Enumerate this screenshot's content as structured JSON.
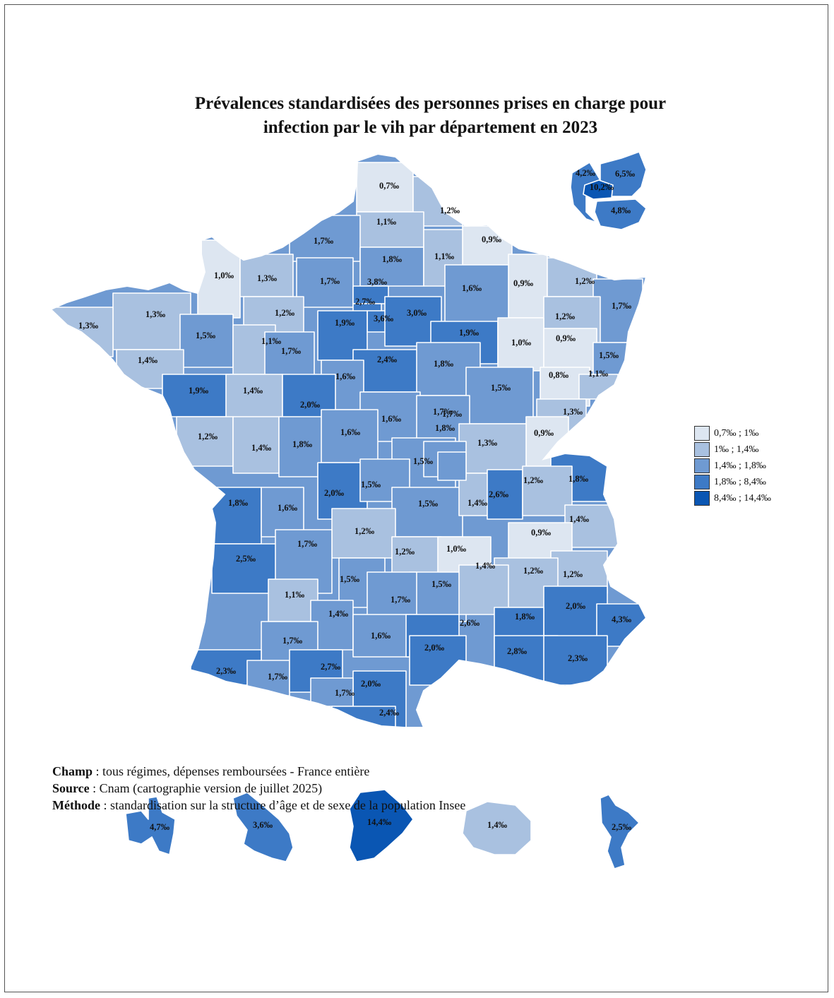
{
  "title": {
    "line1": "Prévalences standardisées des personnes prises en charge pour",
    "line2": "infection par le vih par département en 2023"
  },
  "legend": [
    {
      "label": "0,7‰ ; 1‰",
      "color": "#dde6f1"
    },
    {
      "label": "1‰ ; 1,4‰",
      "color": "#a9c1e0"
    },
    {
      "label": "1,4‰ ; 1,8‰",
      "color": "#6f9ad2"
    },
    {
      "label": "1,8‰ ; 8,4‰",
      "color": "#3d7ac6"
    },
    {
      "label": "8,4‰ ; 14,4‰",
      "color": "#0a56b3"
    }
  ],
  "departments": [
    {
      "value": "0,7‰",
      "class": 0
    },
    {
      "value": "1,2‰",
      "class": 1
    },
    {
      "value": "1,1‰",
      "class": 1
    },
    {
      "value": "1,7‰",
      "class": 2
    },
    {
      "value": "0,9‰",
      "class": 0
    },
    {
      "value": "1,8‰",
      "class": 2
    },
    {
      "value": "1,1‰",
      "class": 1
    },
    {
      "value": "1,0‰",
      "class": 0
    },
    {
      "value": "1,3‰",
      "class": 1
    },
    {
      "value": "1,7‰",
      "class": 2
    },
    {
      "value": "3,8‰",
      "class": 3
    },
    {
      "value": "0,9‰",
      "class": 0
    },
    {
      "value": "1,2‰",
      "class": 1
    },
    {
      "value": "1,6‰",
      "class": 2
    },
    {
      "value": "2,7‰",
      "class": 3
    },
    {
      "value": "1,3‰",
      "class": 1
    },
    {
      "value": "1,3‰",
      "class": 1
    },
    {
      "value": "1,2‰",
      "class": 1
    },
    {
      "value": "3,6‰",
      "class": 3
    },
    {
      "value": "3,0‰",
      "class": 3
    },
    {
      "value": "1,7‰",
      "class": 2
    },
    {
      "value": "1,2‰",
      "class": 1
    },
    {
      "value": "1,5‰",
      "class": 2
    },
    {
      "value": "1,9‰",
      "class": 3
    },
    {
      "value": "1,9‰",
      "class": 3
    },
    {
      "value": "1,1‰",
      "class": 1
    },
    {
      "value": "1,0‰",
      "class": 0
    },
    {
      "value": "0,9‰",
      "class": 0
    },
    {
      "value": "1,7‰",
      "class": 2
    },
    {
      "value": "1,4‰",
      "class": 1
    },
    {
      "value": "2,4‰",
      "class": 3
    },
    {
      "value": "1,8‰",
      "class": 2
    },
    {
      "value": "1,5‰",
      "class": 2
    },
    {
      "value": "1,6‰",
      "class": 2
    },
    {
      "value": "0,8‰",
      "class": 0
    },
    {
      "value": "1,1‰",
      "class": 1
    },
    {
      "value": "1,9‰",
      "class": 3
    },
    {
      "value": "1,4‰",
      "class": 1
    },
    {
      "value": "2,0‰",
      "class": 3
    },
    {
      "value": "1,5‰",
      "class": 2
    },
    {
      "value": "1,6‰",
      "class": 2
    },
    {
      "value": "1,7‰",
      "class": 2
    },
    {
      "value": "1,3‰",
      "class": 1
    },
    {
      "value": "1,2‰",
      "class": 1
    },
    {
      "value": "1,4‰",
      "class": 1
    },
    {
      "value": "1,8‰",
      "class": 2
    },
    {
      "value": "1,6‰",
      "class": 2
    },
    {
      "value": "0,9‰",
      "class": 0
    },
    {
      "value": "1,3‰",
      "class": 1
    },
    {
      "value": "1,5‰",
      "class": 2
    },
    {
      "value": "1,8‰",
      "class": 3
    },
    {
      "value": "2,0‰",
      "class": 3
    },
    {
      "value": "1,5‰",
      "class": 2
    },
    {
      "value": "1,5‰",
      "class": 2
    },
    {
      "value": "1,4‰",
      "class": 1
    },
    {
      "value": "2,6‰",
      "class": 3
    },
    {
      "value": "1,2‰",
      "class": 1
    },
    {
      "value": "1,8‰",
      "class": 3
    },
    {
      "value": "1,6‰",
      "class": 2
    },
    {
      "value": "1,2‰",
      "class": 1
    },
    {
      "value": "1,4‰",
      "class": 1
    },
    {
      "value": "2,5‰",
      "class": 3
    },
    {
      "value": "1,7‰",
      "class": 2
    },
    {
      "value": "1,2‰",
      "class": 1
    },
    {
      "value": "1,0‰",
      "class": 0
    },
    {
      "value": "0,9‰",
      "class": 0
    },
    {
      "value": "1,2‰",
      "class": 1
    },
    {
      "value": "1,4‰",
      "class": 1
    },
    {
      "value": "1,5‰",
      "class": 2
    },
    {
      "value": "1,5‰",
      "class": 2
    },
    {
      "value": "1,1‰",
      "class": 1
    },
    {
      "value": "1,7‰",
      "class": 2
    },
    {
      "value": "1,2‰",
      "class": 1
    },
    {
      "value": "2,0‰",
      "class": 3
    },
    {
      "value": "1,4‰",
      "class": 2
    },
    {
      "value": "1,6‰",
      "class": 2
    },
    {
      "value": "2,0‰",
      "class": 3
    },
    {
      "value": "1,8‰",
      "class": 3
    },
    {
      "value": "4,3‰",
      "class": 3
    },
    {
      "value": "1,7‰",
      "class": 2
    },
    {
      "value": "2,6‰",
      "class": 3
    },
    {
      "value": "2,8‰",
      "class": 3
    },
    {
      "value": "2,3‰",
      "class": 3
    },
    {
      "value": "2,3‰",
      "class": 3
    },
    {
      "value": "1,7‰",
      "class": 2
    },
    {
      "value": "2,7‰",
      "class": 3
    },
    {
      "value": "2,0‰",
      "class": 3
    },
    {
      "value": "1,7‰",
      "class": 2
    },
    {
      "value": "2,4‰",
      "class": 3
    },
    {
      "value": "1,8‰",
      "class": 2
    },
    {
      "value": "1,7‰",
      "class": 2
    }
  ],
  "idf_inset": [
    {
      "value": "4,2‰",
      "class": 3
    },
    {
      "value": "6,5‰",
      "class": 3
    },
    {
      "value": "10,2‰",
      "class": 4
    },
    {
      "value": "4,8‰",
      "class": 3
    }
  ],
  "overseas": [
    {
      "value": "4,7‰",
      "class": 3
    },
    {
      "value": "3,6‰",
      "class": 3
    },
    {
      "value": "14,4‰",
      "class": 4
    },
    {
      "value": "1,4‰",
      "class": 1
    },
    {
      "value": "2,5‰",
      "class": 3
    }
  ],
  "notes": {
    "champ_label": "Champ",
    "champ_text": " : tous régimes, dépenses remboursées - France entière",
    "source_label": "Source",
    "source_text": " : Cnam (cartographie version de juillet 2025)",
    "methode_label": "Méthode",
    "methode_text": " : standardisation sur la structure d’âge et de sexe de la population Insee"
  }
}
